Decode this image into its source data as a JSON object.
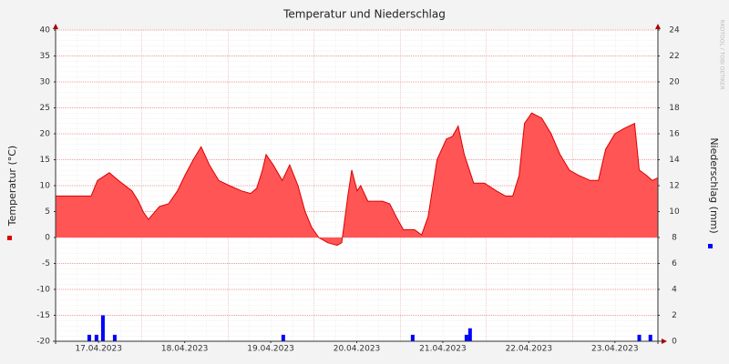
{
  "chart_data": {
    "type": "area",
    "title": "Temperatur und Niederschlag",
    "y_label": "Temperatur (°C)",
    "y2_label": "Niederschlag (mm)",
    "watermark": "RRDTOOL / TOBI OETIKER",
    "xlim": [
      0,
      168
    ],
    "xticks": [
      {
        "value": 12,
        "label": "17.04.2023"
      },
      {
        "value": 36,
        "label": "18.04.2023"
      },
      {
        "value": 60,
        "label": "19.04.2023"
      },
      {
        "value": 84,
        "label": "20.04.2023"
      },
      {
        "value": 108,
        "label": "21.04.2023"
      },
      {
        "value": 132,
        "label": "22.04.2023"
      },
      {
        "value": 156,
        "label": "23.04.2023"
      }
    ],
    "ylim": [
      -20,
      40
    ],
    "yticks": [
      -20,
      -15,
      -10,
      -5,
      0,
      5,
      10,
      15,
      20,
      25,
      30,
      35,
      40
    ],
    "y2lim": [
      0,
      24
    ],
    "y2ticks": [
      0,
      2,
      4,
      6,
      8,
      10,
      12,
      14,
      16,
      18,
      20,
      22,
      24
    ],
    "grid": true,
    "series": [
      {
        "type": "area",
        "color": "#ff5555",
        "line_color": "#dd0000",
        "legend_color": "#dd0000",
        "x": [
          0,
          9.9,
          11.7,
          15,
          17.5,
          21.3,
          23.1,
          24.4,
          25.9,
          29,
          31.5,
          34,
          36.1,
          38.4,
          40.6,
          42.9,
          45.5,
          48.5,
          51.8,
          54.4,
          56.1,
          57.7,
          58.7,
          60.7,
          63.2,
          65.3,
          67.6,
          69.6,
          71.4,
          73.4,
          75.9,
          78.5,
          79.8,
          81.5,
          82.6,
          84.1,
          85.1,
          87.1,
          91.2,
          93.2,
          95,
          97,
          100.1,
          102.1,
          103.9,
          106.4,
          109,
          110.7,
          112.3,
          114,
          116.6,
          119.6,
          122.9,
          125.5,
          127.5,
          129.3,
          130.8,
          132.8,
          135.6,
          138.2,
          140.7,
          143.3,
          145.8,
          149.1,
          151.4,
          153.4,
          156,
          158.5,
          161.5,
          162.8,
          164.8,
          166.4,
          168
        ],
        "values": [
          8,
          8,
          11,
          12.5,
          11,
          9,
          7,
          5,
          3.5,
          6,
          6.5,
          9,
          12,
          15,
          17.5,
          14,
          11,
          10,
          9,
          8.5,
          9.5,
          13,
          16,
          14,
          11,
          14,
          10,
          5,
          2,
          0,
          -1,
          -1.5,
          -1,
          8,
          13,
          9,
          10,
          7,
          7,
          6.5,
          4,
          1.5,
          1.5,
          0.5,
          4,
          15,
          19,
          19.5,
          21.5,
          16,
          10.5,
          10.5,
          9,
          8,
          8,
          12,
          22,
          24,
          23,
          20,
          16,
          13,
          12,
          11,
          11,
          17,
          20,
          21,
          22,
          13,
          12,
          11,
          11.5
        ]
      },
      {
        "type": "bar",
        "axis": "y2",
        "color": "#0000ff",
        "legend_color": "#0000ff",
        "x": [
          9.4,
          11.4,
          13.2,
          16.5,
          63.5,
          99.6,
          114.6,
          115.6,
          162.8,
          165.9
        ],
        "values": [
          0.5,
          0.5,
          2,
          0.5,
          0.5,
          0.5,
          0.5,
          1,
          0.5,
          0.5
        ]
      }
    ]
  }
}
